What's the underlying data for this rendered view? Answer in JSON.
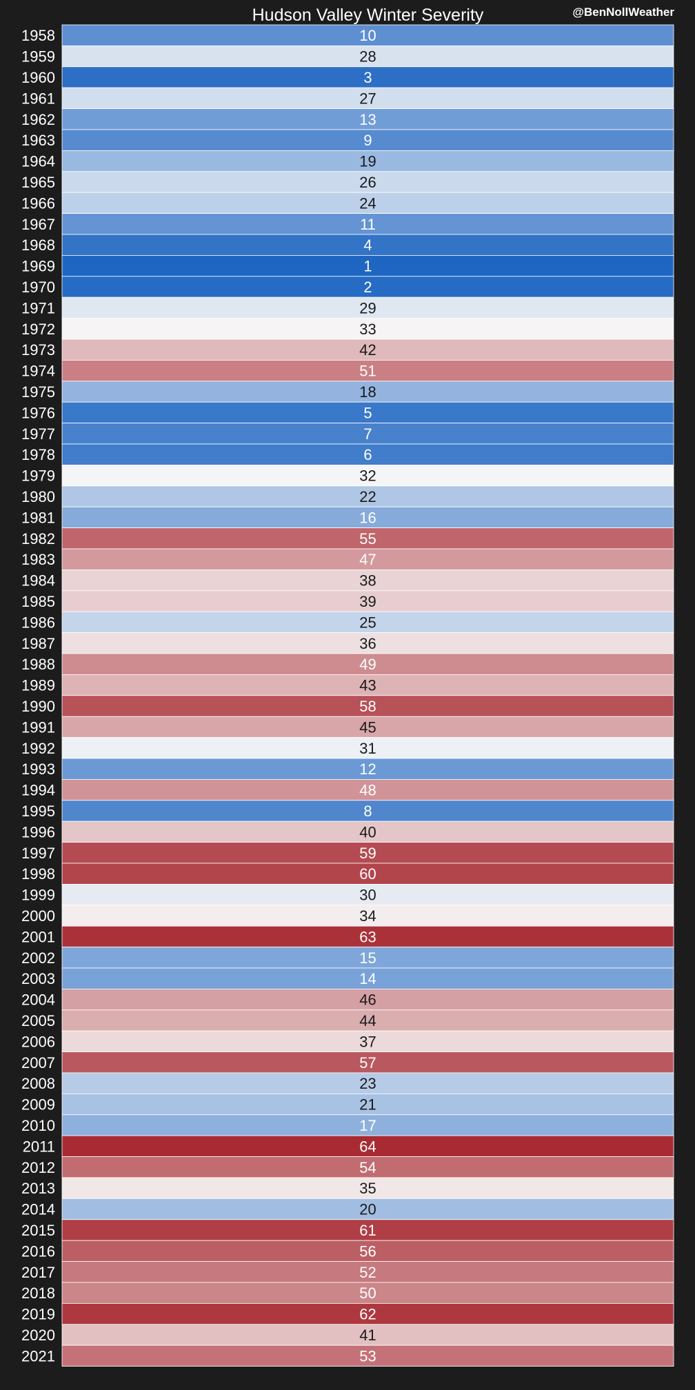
{
  "header": {
    "title": "Hudson Valley Winter Severity",
    "credit": "@BenNollWeather"
  },
  "chart_data": {
    "type": "heatmap",
    "title": "Hudson Valley Winter Severity",
    "xlabel": "",
    "ylabel": "",
    "categories": [
      "1958",
      "1959",
      "1960",
      "1961",
      "1962",
      "1963",
      "1964",
      "1965",
      "1966",
      "1967",
      "1968",
      "1969",
      "1970",
      "1971",
      "1972",
      "1973",
      "1974",
      "1975",
      "1976",
      "1977",
      "1978",
      "1979",
      "1980",
      "1981",
      "1982",
      "1983",
      "1984",
      "1985",
      "1986",
      "1987",
      "1988",
      "1989",
      "1990",
      "1991",
      "1992",
      "1993",
      "1994",
      "1995",
      "1996",
      "1997",
      "1998",
      "1999",
      "2000",
      "2001",
      "2002",
      "2003",
      "2004",
      "2005",
      "2006",
      "2007",
      "2008",
      "2009",
      "2010",
      "2011",
      "2012",
      "2013",
      "2014",
      "2015",
      "2016",
      "2017",
      "2018",
      "2019",
      "2020",
      "2021"
    ],
    "values": [
      10,
      28,
      3,
      27,
      13,
      9,
      19,
      26,
      24,
      11,
      4,
      1,
      2,
      29,
      33,
      42,
      51,
      18,
      5,
      7,
      6,
      32,
      22,
      16,
      55,
      47,
      38,
      39,
      25,
      36,
      49,
      43,
      58,
      45,
      31,
      12,
      48,
      8,
      40,
      59,
      60,
      30,
      34,
      63,
      15,
      14,
      46,
      44,
      37,
      57,
      23,
      21,
      17,
      64,
      54,
      35,
      20,
      61,
      56,
      52,
      50,
      62,
      41,
      53
    ],
    "value_range": [
      1,
      64
    ],
    "colormap": {
      "low": "#1f66c2",
      "mid": "#f7f7f7",
      "high": "#a82b33"
    },
    "colors": {
      "background": "#1c1c1c",
      "text_light": "#ffffff",
      "text_dark": "#1a1a1a",
      "row_separator": "#ffffff"
    }
  }
}
